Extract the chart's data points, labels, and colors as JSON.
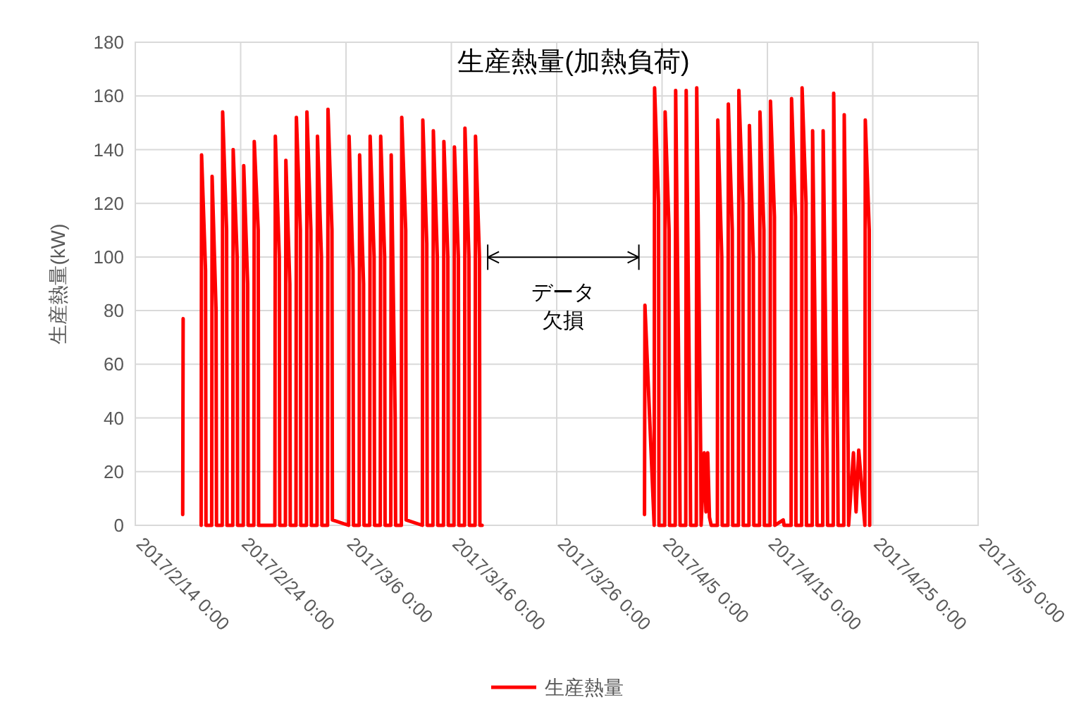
{
  "chart_data": {
    "type": "line",
    "title": "生産熱量(加熱負荷)",
    "ylabel": "生産熱量(kW)",
    "xlim": [
      "2017-02-14",
      "2017-05-05"
    ],
    "ylim": [
      0,
      180
    ],
    "yticks": [
      0,
      20,
      40,
      60,
      80,
      100,
      120,
      140,
      160,
      180
    ],
    "xticks": [
      {
        "value": "2017-02-14",
        "label": "2017/2/14 0:00"
      },
      {
        "value": "2017-02-24",
        "label": "2017/2/24 0:00"
      },
      {
        "value": "2017-03-06",
        "label": "2017/3/6 0:00"
      },
      {
        "value": "2017-03-16",
        "label": "2017/3/16 0:00"
      },
      {
        "value": "2017-03-26",
        "label": "2017/3/26 0:00"
      },
      {
        "value": "2017-04-05",
        "label": "2017/4/5 0:00"
      },
      {
        "value": "2017-04-15",
        "label": "2017/4/15 0:00"
      },
      {
        "value": "2017-04-25",
        "label": "2017/4/25 0:00"
      },
      {
        "value": "2017-05-05",
        "label": "2017/5/5 0:00"
      }
    ],
    "grid": true,
    "legend": "bottom",
    "line_style": "solid",
    "marker": "none",
    "annotations": [
      "データ",
      "欠損"
    ],
    "series": [
      {
        "name": "生産熱量",
        "color": "#ff0000",
        "x": [
          "2017-02-18T12:00",
          "2017-02-18T13:00",
          "2017-02-19T00:00",
          "2017-02-20T06:00",
          "2017-02-20T07:00",
          "2017-02-20T16:00",
          "2017-02-20T17:00",
          "2017-02-21T06:00",
          "2017-02-21T07:00",
          "2017-02-21T16:00",
          "2017-02-21T17:00",
          "2017-02-22T06:00",
          "2017-02-22T07:00",
          "2017-02-22T16:00",
          "2017-02-22T17:00",
          "2017-02-23T06:00",
          "2017-02-23T07:00",
          "2017-02-23T16:00",
          "2017-02-23T17:00",
          "2017-02-24T06:00",
          "2017-02-24T07:00",
          "2017-02-24T16:00",
          "2017-02-24T17:00",
          "2017-02-25T06:00",
          "2017-02-25T07:00",
          "2017-02-25T16:00",
          "2017-02-25T17:00",
          "2017-02-27T06:00",
          "2017-02-27T07:00",
          "2017-02-27T16:00",
          "2017-02-27T17:00",
          "2017-02-28T06:00",
          "2017-02-28T07:00",
          "2017-02-28T16:00",
          "2017-02-28T17:00",
          "2017-03-01T06:00",
          "2017-03-01T07:00",
          "2017-03-01T16:00",
          "2017-03-01T17:00",
          "2017-03-02T06:00",
          "2017-03-02T07:00",
          "2017-03-02T16:00",
          "2017-03-02T17:00",
          "2017-03-03T06:00",
          "2017-03-03T07:00",
          "2017-03-03T16:00",
          "2017-03-03T17:00",
          "2017-03-04T06:00",
          "2017-03-04T07:00",
          "2017-03-04T16:00",
          "2017-03-04T17:00",
          "2017-03-06T06:00",
          "2017-03-06T07:00",
          "2017-03-06T16:00",
          "2017-03-06T17:00",
          "2017-03-07T06:00",
          "2017-03-07T07:00",
          "2017-03-07T16:00",
          "2017-03-07T17:00",
          "2017-03-08T06:00",
          "2017-03-08T07:00",
          "2017-03-08T16:00",
          "2017-03-08T17:00",
          "2017-03-09T06:00",
          "2017-03-09T07:00",
          "2017-03-09T16:00",
          "2017-03-09T17:00",
          "2017-03-10T06:00",
          "2017-03-10T07:00",
          "2017-03-10T16:00",
          "2017-03-10T17:00",
          "2017-03-11T06:00",
          "2017-03-11T07:00",
          "2017-03-11T16:00",
          "2017-03-11T17:00",
          "2017-03-13T06:00",
          "2017-03-13T07:00",
          "2017-03-13T16:00",
          "2017-03-13T17:00",
          "2017-03-14T06:00",
          "2017-03-14T07:00",
          "2017-03-14T16:00",
          "2017-03-14T17:00",
          "2017-03-15T06:00",
          "2017-03-15T07:00",
          "2017-03-15T16:00",
          "2017-03-15T17:00",
          "2017-03-16T06:00",
          "2017-03-16T07:00",
          "2017-03-16T16:00",
          "2017-03-16T17:00",
          "2017-03-17T06:00",
          "2017-03-17T07:00",
          "2017-03-17T16:00",
          "2017-03-17T17:00",
          "2017-03-18T06:00",
          "2017-03-18T07:00",
          "2017-03-18T16:00",
          "2017-03-18T17:00",
          "2017-03-18T22:00",
          "2017-03-26T00:00",
          "2017-04-03T08:00",
          "2017-04-03T09:00",
          "2017-04-04T06:00",
          "2017-04-04T07:00",
          "2017-04-04T16:00",
          "2017-04-04T17:00",
          "2017-04-05T06:00",
          "2017-04-05T07:00",
          "2017-04-05T16:00",
          "2017-04-05T17:00",
          "2017-04-06T06:00",
          "2017-04-06T07:00",
          "2017-04-06T16:00",
          "2017-04-06T17:00",
          "2017-04-07T06:00",
          "2017-04-07T07:00",
          "2017-04-07T16:00",
          "2017-04-07T17:00",
          "2017-04-08T06:00",
          "2017-04-08T07:00",
          "2017-04-08T16:00",
          "2017-04-08T17:00",
          "2017-04-09T00:00",
          "2017-04-09T04:00",
          "2017-04-09T08:00",
          "2017-04-09T12:00",
          "2017-04-09T16:00",
          "2017-04-10T06:00",
          "2017-04-10T07:00",
          "2017-04-10T16:00",
          "2017-04-10T17:00",
          "2017-04-11T06:00",
          "2017-04-11T07:00",
          "2017-04-11T16:00",
          "2017-04-11T17:00",
          "2017-04-12T06:00",
          "2017-04-12T07:00",
          "2017-04-12T16:00",
          "2017-04-12T17:00",
          "2017-04-13T06:00",
          "2017-04-13T07:00",
          "2017-04-13T16:00",
          "2017-04-13T17:00",
          "2017-04-14T06:00",
          "2017-04-14T07:00",
          "2017-04-14T16:00",
          "2017-04-14T17:00",
          "2017-04-15T06:00",
          "2017-04-15T07:00",
          "2017-04-15T16:00",
          "2017-04-15T17:00",
          "2017-04-16T12:00",
          "2017-04-16T14:00",
          "2017-04-17T06:00",
          "2017-04-17T07:00",
          "2017-04-17T16:00",
          "2017-04-17T17:00",
          "2017-04-18T06:00",
          "2017-04-18T07:00",
          "2017-04-18T16:00",
          "2017-04-18T17:00",
          "2017-04-19T06:00",
          "2017-04-19T07:00",
          "2017-04-19T16:00",
          "2017-04-19T17:00",
          "2017-04-20T06:00",
          "2017-04-20T07:00",
          "2017-04-20T16:00",
          "2017-04-20T17:00",
          "2017-04-21T06:00",
          "2017-04-21T07:00",
          "2017-04-21T16:00",
          "2017-04-21T17:00",
          "2017-04-22T06:00",
          "2017-04-22T07:00",
          "2017-04-22T16:00",
          "2017-04-22T17:00",
          "2017-04-23T04:00",
          "2017-04-23T10:00",
          "2017-04-23T16:00",
          "2017-04-24T06:00",
          "2017-04-24T07:00",
          "2017-04-24T16:00",
          "2017-04-24T17:00"
        ],
        "values": [
          4,
          77,
          null,
          0,
          138,
          95,
          0,
          0,
          130,
          80,
          0,
          0,
          154,
          110,
          0,
          0,
          140,
          100,
          0,
          0,
          134,
          90,
          0,
          0,
          143,
          110,
          0,
          0,
          145,
          100,
          0,
          0,
          136,
          90,
          0,
          0,
          152,
          110,
          0,
          0,
          154,
          110,
          0,
          0,
          145,
          100,
          0,
          0,
          155,
          110,
          2,
          0,
          145,
          95,
          0,
          0,
          138,
          90,
          0,
          0,
          145,
          100,
          0,
          0,
          145,
          100,
          0,
          0,
          138,
          40,
          0,
          0,
          152,
          110,
          2,
          0,
          151,
          105,
          0,
          0,
          147,
          100,
          0,
          0,
          143,
          100,
          0,
          0,
          141,
          100,
          0,
          0,
          148,
          100,
          0,
          0,
          145,
          100,
          0,
          0,
          null,
          4,
          82,
          0,
          163,
          120,
          0,
          0,
          154,
          110,
          0,
          0,
          162,
          27,
          0,
          0,
          162,
          27,
          0,
          0,
          163,
          27,
          0,
          27,
          5,
          27,
          3,
          0,
          0,
          151,
          100,
          0,
          0,
          157,
          110,
          0,
          0,
          162,
          120,
          0,
          0,
          149,
          100,
          0,
          0,
          154,
          110,
          0,
          0,
          158,
          115,
          0,
          2,
          0,
          0,
          159,
          115,
          0,
          0,
          163,
          120,
          0,
          0,
          147,
          27,
          0,
          0,
          147,
          27,
          0,
          0,
          161,
          27,
          0,
          0,
          153,
          27,
          0,
          27,
          5,
          28,
          0,
          151,
          110,
          0
        ]
      }
    ]
  }
}
